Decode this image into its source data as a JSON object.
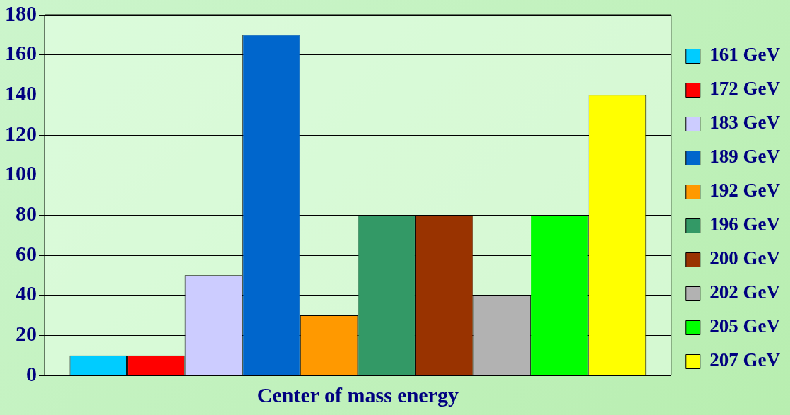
{
  "chart_data": {
    "type": "bar",
    "xlabel": "Center of mass energy",
    "categories": [
      null
    ],
    "series": [
      {
        "name": "161 GeV",
        "color": "#00ccff",
        "values": [
          10
        ]
      },
      {
        "name": "172 GeV",
        "color": "#ff0000",
        "values": [
          10
        ]
      },
      {
        "name": "183 GeV",
        "color": "#ccccff",
        "values": [
          50
        ]
      },
      {
        "name": "189 GeV",
        "color": "#0066cc",
        "values": [
          170
        ]
      },
      {
        "name": "192 GeV",
        "color": "#ff9900",
        "values": [
          30
        ]
      },
      {
        "name": "196 GeV",
        "color": "#339966",
        "values": [
          80
        ]
      },
      {
        "name": "200 GeV",
        "color": "#993300",
        "values": [
          80
        ]
      },
      {
        "name": "202 GeV",
        "color": "#b2b2b2",
        "values": [
          40
        ]
      },
      {
        "name": "205 GeV",
        "color": "#00ff00",
        "values": [
          80
        ]
      },
      {
        "name": "207 GeV",
        "color": "#ffff00",
        "values": [
          140
        ]
      }
    ],
    "ylim": [
      0,
      180
    ],
    "yticks": [
      0,
      20,
      40,
      60,
      80,
      100,
      120,
      140,
      160,
      180
    ],
    "grid": "y",
    "legend": "right"
  }
}
